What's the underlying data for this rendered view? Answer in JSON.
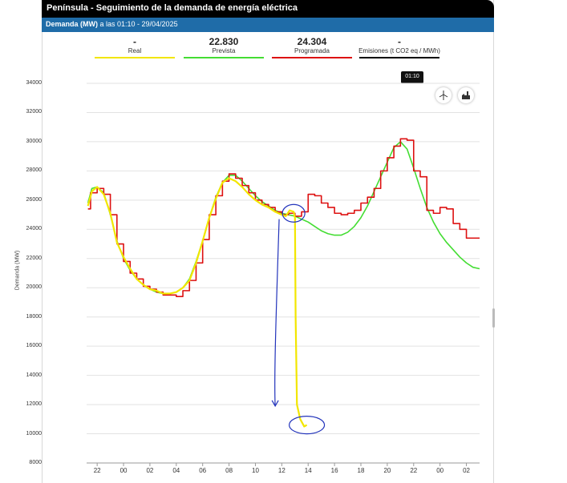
{
  "header": {
    "title": "Península  -  Seguimiento de la demanda de energía eléctrica",
    "subtitle_bold": "Demanda (MW)",
    "subtitle_rest": " a las 01:10 - 29/04/2025"
  },
  "legend": [
    {
      "value": "-",
      "name": "Real",
      "color": "#f2e600"
    },
    {
      "value": "22.830",
      "name": "Prevista",
      "color": "#44dd33"
    },
    {
      "value": "24.304",
      "name": "Programada",
      "color": "#dd1111"
    },
    {
      "value": "-",
      "name": "Emisiones (t CO2 eq / MWh)",
      "color": "#000000"
    }
  ],
  "toolbar": {
    "tooltip": "01:10",
    "icons": [
      "wind-turbine-icon",
      "factory-icon"
    ]
  },
  "annotation_color": "#2233bb",
  "chart_data": {
    "type": "line",
    "ylabel": "Demanda (MW)",
    "ylim": [
      8000,
      34000
    ],
    "yticks": [
      "8000",
      "10000",
      "12000",
      "14000",
      "16000",
      "18000",
      "20000",
      "22000",
      "24000",
      "26000",
      "28000",
      "30000",
      "32000",
      "34000"
    ],
    "xticks": [
      {
        "label": "22",
        "h": 22
      },
      {
        "label": "00",
        "h": 24
      },
      {
        "label": "02",
        "h": 26
      },
      {
        "label": "04",
        "h": 28
      },
      {
        "label": "06",
        "h": 30
      },
      {
        "label": "08",
        "h": 32
      },
      {
        "label": "10",
        "h": 34
      },
      {
        "label": "12",
        "h": 36
      },
      {
        "label": "14",
        "h": 38
      },
      {
        "label": "16",
        "h": 40
      },
      {
        "label": "18",
        "h": 42
      },
      {
        "label": "20",
        "h": 44
      },
      {
        "label": "22",
        "h": 46
      },
      {
        "label": "00",
        "h": 48
      },
      {
        "label": "02",
        "h": 50
      }
    ],
    "xlim": [
      21.2,
      51.0
    ],
    "series": [
      {
        "name": "Prevista",
        "color": "#44dd33",
        "points": [
          [
            21.3,
            25800
          ],
          [
            21.6,
            26800
          ],
          [
            22,
            26900
          ],
          [
            22.5,
            26500
          ],
          [
            23,
            25000
          ],
          [
            23.5,
            23200
          ],
          [
            24,
            22000
          ],
          [
            24.5,
            21200
          ],
          [
            25,
            20600
          ],
          [
            25.5,
            20200
          ],
          [
            26,
            19900
          ],
          [
            26.5,
            19700
          ],
          [
            27,
            19600
          ],
          [
            27.5,
            19600
          ],
          [
            28,
            19700
          ],
          [
            28.5,
            20000
          ],
          [
            29,
            20600
          ],
          [
            29.5,
            21800
          ],
          [
            30,
            23200
          ],
          [
            30.5,
            24800
          ],
          [
            31,
            26200
          ],
          [
            31.5,
            27200
          ],
          [
            32,
            27700
          ],
          [
            32.5,
            27700
          ],
          [
            33,
            27300
          ],
          [
            33.5,
            26800
          ],
          [
            34,
            26300
          ],
          [
            34.5,
            25900
          ],
          [
            35,
            25600
          ],
          [
            35.5,
            25300
          ],
          [
            36,
            25100
          ],
          [
            36.5,
            25000
          ],
          [
            37,
            24900
          ],
          [
            37.5,
            24700
          ],
          [
            38,
            24500
          ],
          [
            38.5,
            24200
          ],
          [
            39,
            23900
          ],
          [
            39.5,
            23700
          ],
          [
            40,
            23600
          ],
          [
            40.5,
            23600
          ],
          [
            41,
            23800
          ],
          [
            41.5,
            24200
          ],
          [
            42,
            24800
          ],
          [
            42.5,
            25600
          ],
          [
            43,
            26600
          ],
          [
            43.5,
            27600
          ],
          [
            44,
            28600
          ],
          [
            44.5,
            29600
          ],
          [
            45,
            30000
          ],
          [
            45.5,
            29500
          ],
          [
            46,
            28200
          ],
          [
            46.5,
            26800
          ],
          [
            47,
            25500
          ],
          [
            47.5,
            24500
          ],
          [
            48,
            23700
          ],
          [
            48.5,
            23100
          ],
          [
            49,
            22600
          ],
          [
            49.5,
            22100
          ],
          [
            50,
            21700
          ],
          [
            50.5,
            21400
          ],
          [
            51,
            21300
          ]
        ]
      },
      {
        "name": "Programada",
        "color": "#dd1111",
        "points": [
          [
            21.3,
            25400
          ],
          [
            21.5,
            26500
          ],
          [
            22,
            26800
          ],
          [
            22.5,
            26400
          ],
          [
            23,
            25000
          ],
          [
            23.5,
            23000
          ],
          [
            24,
            21800
          ],
          [
            24.5,
            21000
          ],
          [
            25,
            20600
          ],
          [
            25.5,
            20100
          ],
          [
            26,
            19900
          ],
          [
            26.5,
            19700
          ],
          [
            27,
            19500
          ],
          [
            27.5,
            19500
          ],
          [
            28,
            19400
          ],
          [
            28.5,
            19800
          ],
          [
            29,
            20500
          ],
          [
            29.5,
            21700
          ],
          [
            30,
            23300
          ],
          [
            30.5,
            25000
          ],
          [
            31,
            26300
          ],
          [
            31.5,
            27300
          ],
          [
            32,
            27800
          ],
          [
            32.5,
            27500
          ],
          [
            33,
            27000
          ],
          [
            33.5,
            26500
          ],
          [
            34,
            26000
          ],
          [
            34.5,
            25700
          ],
          [
            35,
            25500
          ],
          [
            35.5,
            25200
          ],
          [
            36,
            25000
          ],
          [
            36.5,
            25100
          ],
          [
            37,
            24900
          ],
          [
            37.5,
            25200
          ],
          [
            38,
            26400
          ],
          [
            38.5,
            26300
          ],
          [
            39,
            25800
          ],
          [
            39.5,
            25500
          ],
          [
            40,
            25100
          ],
          [
            40.5,
            25000
          ],
          [
            41,
            25100
          ],
          [
            41.5,
            25300
          ],
          [
            42,
            25800
          ],
          [
            42.5,
            26200
          ],
          [
            43,
            26800
          ],
          [
            43.5,
            28000
          ],
          [
            44,
            28900
          ],
          [
            44.5,
            29700
          ],
          [
            45,
            30200
          ],
          [
            45.5,
            30100
          ],
          [
            46,
            28000
          ],
          [
            46.5,
            27600
          ],
          [
            47,
            25300
          ],
          [
            47.5,
            25100
          ],
          [
            48,
            25500
          ],
          [
            48.5,
            25400
          ],
          [
            49,
            24400
          ],
          [
            49.5,
            24000
          ],
          [
            50,
            23400
          ],
          [
            51,
            23400
          ]
        ]
      },
      {
        "name": "Real",
        "color": "#f2e600",
        "points": [
          [
            21.3,
            25600
          ],
          [
            21.6,
            26600
          ],
          [
            22,
            26900
          ],
          [
            22.5,
            26400
          ],
          [
            23,
            25100
          ],
          [
            23.5,
            23100
          ],
          [
            24,
            22100
          ],
          [
            24.5,
            21300
          ],
          [
            25,
            20600
          ],
          [
            25.5,
            20200
          ],
          [
            26,
            19900
          ],
          [
            26.5,
            19800
          ],
          [
            27,
            19600
          ],
          [
            27.5,
            19600
          ],
          [
            28,
            19700
          ],
          [
            28.5,
            20000
          ],
          [
            29,
            20500
          ],
          [
            29.5,
            21700
          ],
          [
            30,
            23200
          ],
          [
            30.5,
            24800
          ],
          [
            31,
            26100
          ],
          [
            31.5,
            27200
          ],
          [
            32,
            27500
          ],
          [
            32.5,
            27300
          ],
          [
            33,
            26900
          ],
          [
            33.5,
            26400
          ],
          [
            34,
            26000
          ],
          [
            34.5,
            25700
          ],
          [
            35,
            25500
          ],
          [
            35.5,
            25200
          ],
          [
            36,
            25000
          ],
          [
            36.3,
            24900
          ],
          [
            36.6,
            25300
          ],
          [
            36.9,
            25200
          ],
          [
            37,
            24800
          ],
          [
            37.05,
            18000
          ],
          [
            37.15,
            12000
          ],
          [
            37.4,
            11000
          ],
          [
            37.7,
            10500
          ],
          [
            37.9,
            10600
          ]
        ]
      }
    ]
  }
}
